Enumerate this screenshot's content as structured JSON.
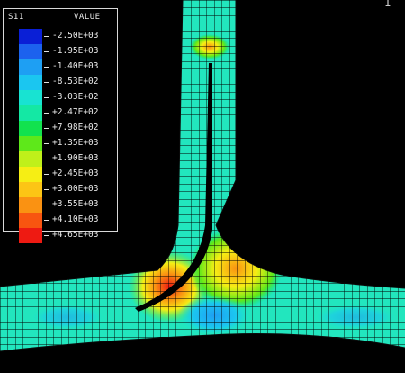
{
  "legend": {
    "variable": "S11",
    "value_header": "VALUE",
    "items": [
      {
        "label": "-2.50E+03",
        "color": "#0a1fd6"
      },
      {
        "label": "-1.95E+03",
        "color": "#1c62ee"
      },
      {
        "label": "-1.40E+03",
        "color": "#1e9ff3"
      },
      {
        "label": "-8.53E+02",
        "color": "#1bc6f0"
      },
      {
        "label": "-3.03E+02",
        "color": "#18e3d2"
      },
      {
        "label": "+2.47E+02",
        "color": "#14e8a4"
      },
      {
        "label": "+7.98E+02",
        "color": "#12e24e"
      },
      {
        "label": "+1.35E+03",
        "color": "#5ee81a"
      },
      {
        "label": "+1.90E+03",
        "color": "#bff01a"
      },
      {
        "label": "+2.45E+03",
        "color": "#f6ee14"
      },
      {
        "label": "+3.00E+03",
        "color": "#fcc515"
      },
      {
        "label": "+3.55E+03",
        "color": "#fa9212"
      },
      {
        "label": "+4.10E+03",
        "color": "#f85510"
      },
      {
        "label": "+4.65E+03",
        "color": "#ee1a12"
      }
    ]
  },
  "mesh_color": "#22e6be",
  "corner_mark": "1"
}
